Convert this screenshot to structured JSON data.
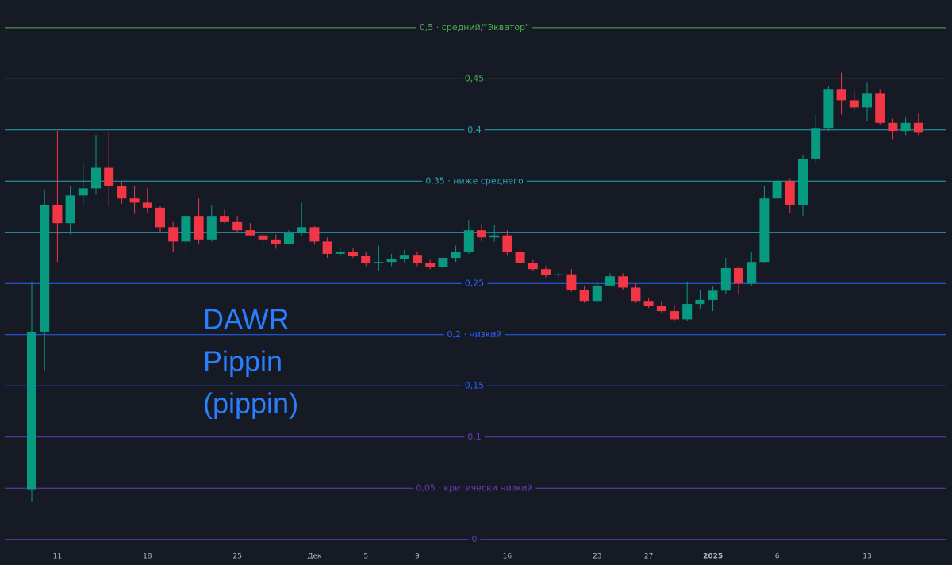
{
  "chart_data": {
    "type": "candlestick",
    "categories": [
      null,
      null,
      "11",
      null,
      null,
      null,
      null,
      null,
      null,
      "18",
      null,
      null,
      null,
      null,
      null,
      null,
      "25",
      null,
      null,
      null,
      null,
      null,
      "Дек",
      null,
      null,
      null,
      "5",
      null,
      null,
      null,
      "9",
      null,
      null,
      null,
      null,
      null,
      null,
      "16",
      null,
      null,
      null,
      null,
      null,
      null,
      "23",
      null,
      null,
      null,
      "27",
      null,
      null,
      null,
      null,
      "2025",
      null,
      null,
      null,
      null,
      "6",
      null,
      null,
      null,
      null,
      null,
      null,
      "13",
      null,
      null,
      null,
      null
    ],
    "open": [
      0.049,
      0.203,
      0.327,
      0.309,
      0.336,
      0.343,
      0.363,
      0.345,
      0.333,
      0.329,
      0.324,
      0.305,
      0.291,
      0.316,
      0.293,
      0.316,
      0.31,
      0.302,
      0.297,
      0.293,
      0.289,
      0.3,
      0.305,
      0.291,
      0.279,
      0.281,
      0.277,
      0.27,
      0.271,
      0.274,
      0.278,
      0.27,
      0.266,
      0.275,
      0.281,
      0.302,
      0.295,
      0.297,
      0.281,
      0.27,
      0.264,
      0.258,
      0.259,
      0.244,
      0.233,
      0.248,
      0.257,
      0.246,
      0.233,
      0.228,
      0.223,
      0.215,
      0.23,
      0.234,
      0.243,
      0.265,
      0.25,
      0.271,
      0.333,
      0.35,
      0.327,
      0.372,
      0.402,
      0.44,
      0.429,
      0.422,
      0.436,
      0.407,
      0.399,
      0.407
    ],
    "high": [
      0.252,
      0.341,
      0.399,
      0.345,
      0.367,
      0.395,
      0.398,
      0.35,
      0.345,
      0.343,
      0.326,
      0.31,
      0.318,
      0.333,
      0.327,
      0.322,
      0.316,
      0.309,
      0.302,
      0.298,
      0.302,
      0.329,
      0.306,
      0.295,
      0.285,
      0.285,
      0.281,
      0.287,
      0.279,
      0.283,
      0.281,
      0.273,
      0.279,
      0.287,
      0.312,
      0.308,
      0.307,
      0.302,
      0.287,
      0.273,
      0.267,
      0.261,
      0.264,
      0.248,
      0.252,
      0.26,
      0.26,
      0.25,
      0.236,
      0.233,
      0.229,
      0.252,
      0.244,
      0.247,
      0.275,
      0.267,
      0.281,
      0.345,
      0.355,
      0.353,
      0.376,
      0.415,
      0.443,
      0.456,
      0.438,
      0.447,
      0.44,
      0.411,
      0.412,
      0.416
    ],
    "low": [
      0.037,
      0.164,
      0.271,
      0.298,
      0.327,
      0.337,
      0.326,
      0.328,
      0.318,
      0.319,
      0.3,
      0.281,
      0.275,
      0.288,
      0.291,
      0.309,
      0.3,
      0.296,
      0.287,
      0.284,
      0.288,
      0.296,
      0.288,
      0.275,
      0.277,
      0.275,
      0.267,
      0.262,
      0.267,
      0.27,
      0.267,
      0.264,
      0.264,
      0.271,
      0.279,
      0.291,
      0.291,
      0.278,
      0.267,
      0.262,
      0.256,
      0.256,
      0.242,
      0.231,
      0.231,
      0.247,
      0.244,
      0.231,
      0.226,
      0.221,
      0.213,
      0.213,
      0.225,
      0.223,
      0.24,
      0.239,
      0.248,
      0.27,
      0.326,
      0.319,
      0.316,
      0.368,
      0.399,
      0.415,
      0.419,
      0.409,
      0.405,
      0.391,
      0.395,
      0.395
    ],
    "close": [
      0.203,
      0.327,
      0.309,
      0.336,
      0.343,
      0.363,
      0.345,
      0.333,
      0.329,
      0.324,
      0.305,
      0.291,
      0.316,
      0.293,
      0.316,
      0.31,
      0.302,
      0.297,
      0.293,
      0.289,
      0.3,
      0.305,
      0.291,
      0.279,
      0.281,
      0.277,
      0.27,
      0.271,
      0.274,
      0.278,
      0.27,
      0.266,
      0.275,
      0.281,
      0.302,
      0.295,
      0.297,
      0.281,
      0.27,
      0.264,
      0.258,
      0.259,
      0.244,
      0.233,
      0.248,
      0.257,
      0.246,
      0.233,
      0.228,
      0.223,
      0.215,
      0.23,
      0.234,
      0.243,
      0.265,
      0.25,
      0.271,
      0.333,
      0.35,
      0.327,
      0.372,
      0.402,
      0.44,
      0.429,
      0.422,
      0.436,
      0.407,
      0.399,
      0.407,
      0.398
    ],
    "up_color": "#089981",
    "down_color": "#f23645",
    "ylim": [
      -0.025,
      0.527
    ],
    "levels": [
      {
        "value": 0.5,
        "label": "0,5 · средний/\"Экватор\"",
        "color": "#4caf50"
      },
      {
        "value": 0.45,
        "label": "0,45",
        "color": "#4caf50"
      },
      {
        "value": 0.4,
        "label": "0,4",
        "color": "#26a6b8"
      },
      {
        "value": 0.35,
        "label": "0,35 · ниже среднего",
        "color": "#26a6b8"
      },
      {
        "value": 0.3,
        "color": "#26a6b8"
      },
      {
        "value": 0.25,
        "label": "0,25",
        "color": "#2962ff"
      },
      {
        "value": 0.2,
        "label": "0,2 · низкий",
        "color": "#2962ff"
      },
      {
        "value": 0.15,
        "label": "0,15",
        "color": "#2962ff"
      },
      {
        "value": 0.1,
        "label": "0,1",
        "color": "#673ab7"
      },
      {
        "value": 0.05,
        "label": "0,05 · критически низкий",
        "color": "#673ab7"
      },
      {
        "value": 0,
        "label": "0",
        "color": "#673ab7"
      }
    ],
    "annotation": [
      "DAWR",
      "Pippin",
      "(pippin)"
    ]
  }
}
